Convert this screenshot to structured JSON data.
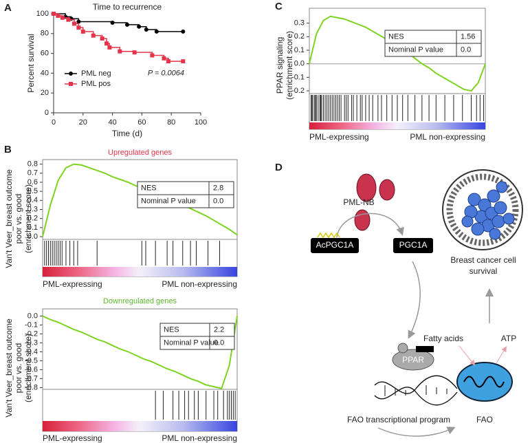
{
  "panel_labels": [
    "A",
    "B",
    "C",
    "D"
  ],
  "chart_data": [
    {
      "type": "line",
      "step": true,
      "title": "Time to recurrence",
      "xlabel": "Time (d)",
      "ylabel": [
        "Percent survival"
      ],
      "annotation": "P = 0.0064",
      "legend": "center-left",
      "xlim": [
        0,
        100
      ],
      "xticks": [
        0,
        20,
        40,
        60,
        80,
        100
      ],
      "ylim": [
        0,
        100
      ],
      "yticks": [
        0,
        20,
        40,
        60,
        80,
        100
      ],
      "series": [
        {
          "name": "PML neg",
          "color": "#000000",
          "marker": "circle",
          "x": [
            0,
            8,
            12,
            17,
            40,
            50,
            58,
            63,
            70,
            88
          ],
          "values": [
            100,
            97,
            95,
            92,
            91,
            89,
            87,
            84,
            82,
            82
          ]
        },
        {
          "name": "PML pos",
          "color": "#e5334a",
          "marker": "square",
          "x": [
            0,
            3,
            6,
            10,
            14,
            17,
            20,
            27,
            33,
            36,
            38,
            45,
            55,
            67,
            75,
            78,
            88
          ],
          "values": [
            100,
            98,
            96,
            94,
            90,
            86,
            82,
            78,
            75,
            70,
            66,
            62,
            61,
            58,
            55,
            52,
            52
          ]
        }
      ]
    },
    {
      "type": "line",
      "title": "Upregulated genes",
      "title_color": "#e5334a",
      "ylabel": [
        "Van't Veer_breast outcome",
        "poor vs. good",
        "(enrichment score)"
      ],
      "xlabels": [
        "PML-expressing",
        "PML non-expressing"
      ],
      "color": "#7ed321",
      "ylim": [
        -0.03,
        0.85
      ],
      "yticks": [
        {
          "value": 0,
          "label": "0.0"
        },
        0.1,
        0.2,
        0.3,
        0.4,
        0.5,
        0.6,
        0.7,
        0.8
      ],
      "values": [
        0,
        0.35,
        0.62,
        0.76,
        0.8,
        0.79,
        0.76,
        0.73,
        0.7,
        0.66,
        0.63,
        0.6,
        0.56,
        0.53,
        0.5,
        0.46,
        0.43,
        0.39,
        0.35,
        0.31,
        0.27,
        0.23,
        0.18,
        0.13,
        0.08,
        0.02
      ],
      "hits": [
        0.01,
        0.02,
        0.03,
        0.04,
        0.05,
        0.06,
        0.07,
        0.08,
        0.09,
        0.1,
        0.12,
        0.14,
        0.16,
        0.18,
        0.28,
        0.51,
        0.53,
        0.58,
        0.64,
        0.67,
        0.72,
        0.76,
        0.79,
        0.85,
        0.91
      ],
      "table": [
        [
          "NES",
          "2.8"
        ],
        [
          "Nominal P value",
          "0.0"
        ]
      ]
    },
    {
      "type": "line",
      "title": "Downregulated genes",
      "title_color": "#5cb82e",
      "ylabel": [
        "Van't Veer_breast outcome",
        "poor vs. good",
        "(enrichment score)"
      ],
      "xlabels": [
        "PML-expressing",
        "PML non-expressing"
      ],
      "color": "#7ed321",
      "ylim": [
        -0.82,
        0.08
      ],
      "yticks": [
        {
          "value": 0,
          "label": "0.0"
        },
        -0.1,
        -0.2,
        -0.3,
        -0.4,
        -0.5,
        -0.6,
        -0.7,
        -0.8
      ],
      "values": [
        0,
        -0.04,
        -0.07,
        -0.11,
        -0.15,
        -0.18,
        -0.22,
        -0.26,
        -0.29,
        -0.33,
        -0.37,
        -0.4,
        -0.44,
        -0.48,
        -0.51,
        -0.55,
        -0.59,
        -0.62,
        -0.66,
        -0.7,
        -0.73,
        -0.77,
        -0.79,
        -0.81,
        -0.55,
        0
      ],
      "hits": [
        0.58,
        0.62,
        0.67,
        0.7,
        0.73,
        0.75,
        0.78,
        0.8,
        0.84,
        0.88,
        0.9,
        0.93,
        0.95,
        0.96,
        0.97,
        0.98,
        0.99
      ],
      "table": [
        [
          "NES",
          "2.2"
        ],
        [
          "Nominal P value",
          "0.0"
        ]
      ]
    },
    {
      "type": "line",
      "ylabel": [
        "PPAR signaling",
        "(enrichment score)"
      ],
      "xlabels": [
        "PML-expressing",
        "PML non-expressing"
      ],
      "color": "#7ed321",
      "zero_line": true,
      "ylim": [
        -0.22,
        0.41
      ],
      "yticks": [
        -0.2,
        -0.1,
        {
          "value": 0,
          "label": "0.0"
        },
        0.1,
        0.2,
        0.3
      ],
      "values": [
        0,
        0.22,
        0.32,
        0.35,
        0.34,
        0.33,
        0.31,
        0.29,
        0.27,
        0.24,
        0.21,
        0.18,
        0.15,
        0.11,
        0.08,
        0.04,
        0,
        -0.03,
        -0.07,
        -0.1,
        -0.13,
        -0.16,
        -0.19,
        -0.2,
        -0.14,
        0
      ],
      "hits": [
        0.01,
        0.015,
        0.02,
        0.03,
        0.035,
        0.04,
        0.05,
        0.06,
        0.065,
        0.07,
        0.08,
        0.09,
        0.1,
        0.11,
        0.12,
        0.13,
        0.14,
        0.15,
        0.16,
        0.17,
        0.18,
        0.2,
        0.21,
        0.22,
        0.24,
        0.25,
        0.27,
        0.29,
        0.3,
        0.32,
        0.34,
        0.36,
        0.39,
        0.41,
        0.44,
        0.47,
        0.5,
        0.53,
        0.56,
        0.6,
        0.64,
        0.68,
        0.72,
        0.77,
        0.82,
        0.87,
        0.92,
        0.95,
        0.97,
        0.99
      ],
      "table": [
        [
          "NES",
          "1.56"
        ],
        [
          "Nominal P value",
          "0.0"
        ]
      ]
    }
  ],
  "diagram": {
    "labels": [
      "PML-NB",
      "AcPGC1A",
      "PGC1A",
      "Breast cancer cell",
      "survival",
      "PPAR",
      "Fatty acids",
      "ATP",
      "FAO transcriptional program",
      "FAO"
    ]
  }
}
